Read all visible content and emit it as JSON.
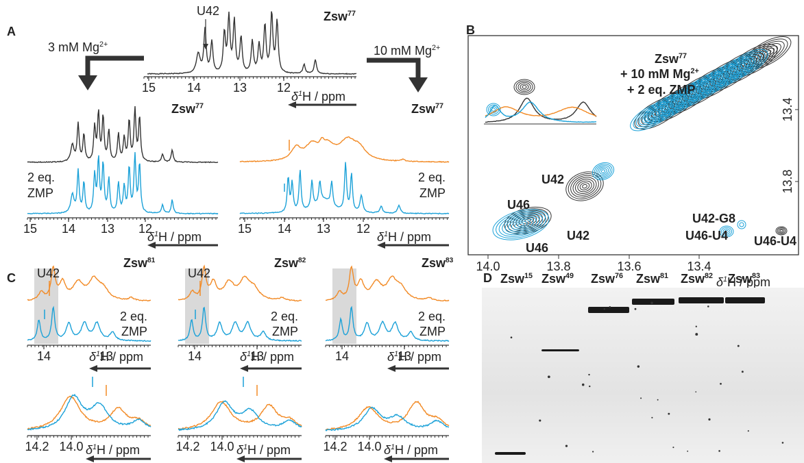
{
  "axis_label": {
    "delta": "δ",
    "sup": "1",
    "unit": "H / ppm"
  },
  "panels": {
    "A": {
      "label": "A",
      "top": {
        "title": "Zsw",
        "title_sup": "77",
        "annotation": "U42",
        "ticks": [
          "15",
          "14",
          "13",
          "12"
        ]
      },
      "left": {
        "condition": "3 mM Mg",
        "condition_sup": "2+",
        "title": "Zsw",
        "title_sup": "77",
        "legend": [
          "2 eq.",
          "ZMP"
        ],
        "ticks": [
          "15",
          "14",
          "13",
          "12"
        ]
      },
      "right": {
        "condition": "10 mM Mg",
        "condition_sup": "2+",
        "title": "Zsw",
        "title_sup": "77",
        "legend": [
          "2 eq.",
          "ZMP"
        ],
        "ticks": [
          "15",
          "14",
          "13",
          "12"
        ]
      }
    },
    "B": {
      "label": "B",
      "title": "Zsw",
      "title_sup": "77",
      "legend": [
        {
          "text": "+ 10 mM Mg",
          "sup": "2+"
        },
        {
          "text": "+ 2 eq. ZMP"
        }
      ],
      "xticks": [
        "14.0",
        "13.8",
        "13.6",
        "13.4"
      ],
      "yticks": [
        "13.4",
        "13.8"
      ],
      "peaks_black": [
        "U42",
        "U46",
        "U46-U4"
      ],
      "peaks_blue": [
        "U42-G8",
        "U46-U4",
        "U42",
        "U46"
      ]
    },
    "C": {
      "label": "C",
      "subpanels": [
        {
          "title": "Zsw",
          "title_sup": "81",
          "annotation": "U42",
          "legend": [
            "2 eq.",
            "ZMP"
          ],
          "ticks": [
            "14",
            "13"
          ],
          "zoom_ticks": [
            "14.2",
            "14.0"
          ]
        },
        {
          "title": "Zsw",
          "title_sup": "82",
          "annotation": "U42",
          "legend": [
            "2 eq.",
            "ZMP"
          ],
          "ticks": [
            "14",
            "13"
          ],
          "zoom_ticks": [
            "14.2",
            "14.0"
          ]
        },
        {
          "title": "Zsw",
          "title_sup": "83",
          "legend": [
            "2 eq.",
            "ZMP"
          ],
          "ticks": [
            "14",
            "13"
          ],
          "zoom_ticks": [
            "14.2",
            "14.0"
          ]
        }
      ]
    },
    "D": {
      "label": "D",
      "lanes": [
        {
          "name": "Zsw",
          "sup": "15"
        },
        {
          "name": "Zsw",
          "sup": "49"
        },
        {
          "name": "Zsw",
          "sup": "76"
        },
        {
          "name": "Zsw",
          "sup": "81"
        },
        {
          "name": "Zsw",
          "sup": "82"
        },
        {
          "name": "Zsw",
          "sup": "83"
        }
      ]
    }
  }
}
